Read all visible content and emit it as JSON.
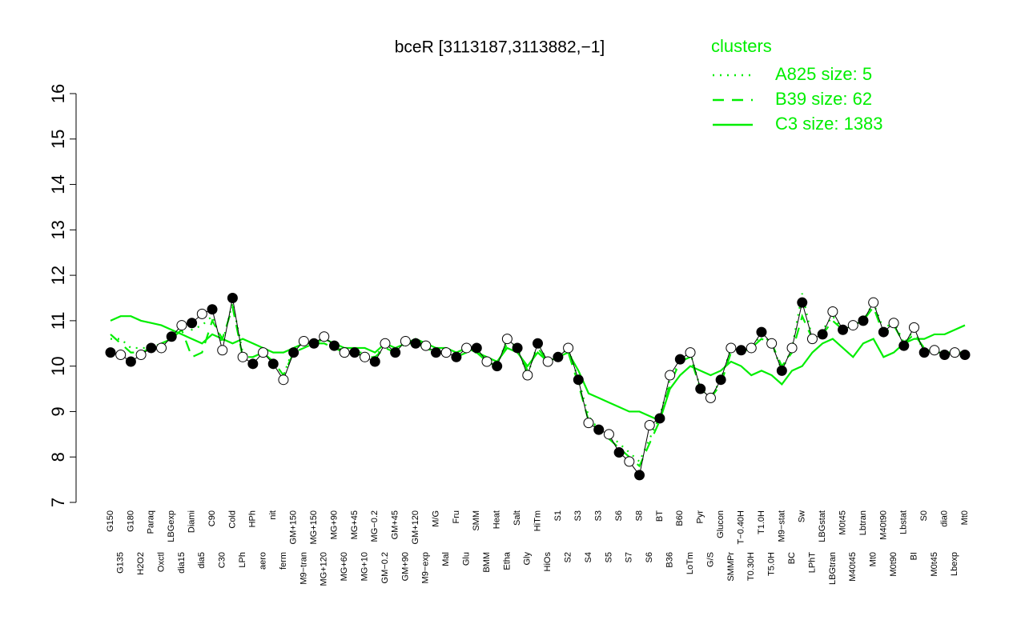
{
  "chart_data": {
    "type": "line",
    "title": "bceR [3113187,3113882,−1]",
    "legend_title": "clusters",
    "legend_position": "top-right",
    "grid": false,
    "ylim": [
      7,
      16
    ],
    "yticks": [
      7,
      8,
      9,
      10,
      11,
      12,
      13,
      14,
      15,
      16
    ],
    "categories": [
      "G150",
      "G135",
      "G180",
      "H2O2",
      "Paraq",
      "Oxctl",
      "LBGexp",
      "dia15",
      "Diami",
      "dia5",
      "C90",
      "C30",
      "Cold",
      "LPh",
      "HPh",
      "aero",
      "nit",
      "ferm",
      "GM+150",
      "M9−tran",
      "MG+150",
      "MG+120",
      "MG+90",
      "MG+60",
      "MG+45",
      "MG+10",
      "MG−0.2",
      "GM−0.2",
      "GM+45",
      "GM+90",
      "GM+120",
      "M9−exp",
      "M/G",
      "Mal",
      "Fru",
      "Glu",
      "SMM",
      "BMM",
      "Heat",
      "Etha",
      "Salt",
      "Gly",
      "HiTm",
      "HiOs",
      "S1",
      "S2",
      "S3",
      "S4",
      "S3",
      "S5",
      "S6",
      "S7",
      "S8",
      "S6",
      "BT",
      "B36",
      "B60",
      "LoTm",
      "Pyr",
      "G/S",
      "Glucon",
      "SMMPr",
      "T−0.40H",
      "T0.30H",
      "T1.0H",
      "T5.0H",
      "M9−stat",
      "BC",
      "Sw",
      "LPhT",
      "LBGstat",
      "LBGtran",
      "M0t45",
      "M40t45",
      "Lbtran",
      "Mt0",
      "M40t90",
      "M0t90",
      "Lbstat",
      "BI",
      "S0",
      "M0t45",
      "dia0",
      "Lbexp",
      "Mt0"
    ],
    "values": [
      10.3,
      10.25,
      10.1,
      10.25,
      10.4,
      10.4,
      10.65,
      10.9,
      10.95,
      11.15,
      11.25,
      10.35,
      11.5,
      10.2,
      10.05,
      10.3,
      10.05,
      9.7,
      10.3,
      10.55,
      10.5,
      10.65,
      10.45,
      10.3,
      10.3,
      10.2,
      10.1,
      10.5,
      10.3,
      10.55,
      10.5,
      10.45,
      10.3,
      10.3,
      10.2,
      10.4,
      10.4,
      10.1,
      10.0,
      10.6,
      10.4,
      9.8,
      10.5,
      10.1,
      10.2,
      10.4,
      9.7,
      8.75,
      8.6,
      8.5,
      8.1,
      7.9,
      7.6,
      8.7,
      8.85,
      9.8,
      10.15,
      10.3,
      9.5,
      9.3,
      9.7,
      10.4,
      10.35,
      10.4,
      10.75,
      10.5,
      9.9,
      10.4,
      11.4,
      10.6,
      10.7,
      11.2,
      10.8,
      10.9,
      11.0,
      11.4,
      10.75,
      10.95,
      10.45,
      10.85,
      10.3,
      10.35,
      10.25,
      10.3,
      10.25
    ],
    "series": [
      {
        "name": "A825 size: 5",
        "color": "#00ee00",
        "style": "dotted",
        "values": [
          10.6,
          10.6,
          10.4,
          10.4,
          10.4,
          10.5,
          10.6,
          10.9,
          10.8,
          10.9,
          11.1,
          10.5,
          11.4,
          10.3,
          10.2,
          10.3,
          10.1,
          9.8,
          10.4,
          10.5,
          10.5,
          10.6,
          10.5,
          10.3,
          10.3,
          10.3,
          10.2,
          10.5,
          10.3,
          10.6,
          10.5,
          10.5,
          10.3,
          10.3,
          10.2,
          10.4,
          10.4,
          10.1,
          10.0,
          10.6,
          10.4,
          9.8,
          10.5,
          10.1,
          10.2,
          10.4,
          9.7,
          8.9,
          8.6,
          8.5,
          8.3,
          8.1,
          7.9,
          8.4,
          8.9,
          9.7,
          10.1,
          10.3,
          9.5,
          9.3,
          9.7,
          10.4,
          10.4,
          10.4,
          10.7,
          10.5,
          9.9,
          10.4,
          11.6,
          10.6,
          10.8,
          11.1,
          10.8,
          10.9,
          11.0,
          11.4,
          10.8,
          11.0,
          10.5,
          10.8,
          10.3,
          10.4,
          10.3,
          10.3,
          10.3
        ]
      },
      {
        "name": "B39 size: 62",
        "color": "#00ee00",
        "style": "dashed",
        "values": [
          10.7,
          10.5,
          10.3,
          10.3,
          10.4,
          10.5,
          10.6,
          10.8,
          10.2,
          10.3,
          11.0,
          10.6,
          11.3,
          10.2,
          10.2,
          10.3,
          10.1,
          9.8,
          10.3,
          10.4,
          10.5,
          10.5,
          10.4,
          10.3,
          10.3,
          10.2,
          10.2,
          10.4,
          10.3,
          10.5,
          10.5,
          10.4,
          10.3,
          10.3,
          10.2,
          10.3,
          10.3,
          10.1,
          10.0,
          10.5,
          10.4,
          9.9,
          10.4,
          10.1,
          10.2,
          10.3,
          9.6,
          8.8,
          8.6,
          8.4,
          8.2,
          8.0,
          7.8,
          8.3,
          8.8,
          9.6,
          10.1,
          10.2,
          9.5,
          9.3,
          9.6,
          10.3,
          10.3,
          10.4,
          10.6,
          10.5,
          10.0,
          10.3,
          11.1,
          10.6,
          10.7,
          11.0,
          10.8,
          10.9,
          11.0,
          11.3,
          10.7,
          10.9,
          10.5,
          10.7,
          10.4,
          10.3,
          10.3,
          10.3,
          10.3
        ]
      },
      {
        "name": "C3 size: 1383",
        "color": "#00ee00",
        "style": "solid",
        "values": [
          11.0,
          11.1,
          11.1,
          11.0,
          10.95,
          10.9,
          10.8,
          10.7,
          10.6,
          10.5,
          10.7,
          10.6,
          10.5,
          10.6,
          10.5,
          10.4,
          10.3,
          10.3,
          10.4,
          10.5,
          10.5,
          10.6,
          10.5,
          10.4,
          10.4,
          10.4,
          10.3,
          10.5,
          10.4,
          10.5,
          10.6,
          10.5,
          10.4,
          10.4,
          10.3,
          10.4,
          10.3,
          10.2,
          10.1,
          10.4,
          10.3,
          10.0,
          10.3,
          10.1,
          10.2,
          10.3,
          9.9,
          9.4,
          9.3,
          9.2,
          9.1,
          9.0,
          9.0,
          8.9,
          8.8,
          9.5,
          9.8,
          10.0,
          9.9,
          9.8,
          9.9,
          10.1,
          10.0,
          9.8,
          9.9,
          9.8,
          9.6,
          9.9,
          10.0,
          10.3,
          10.5,
          10.6,
          10.4,
          10.2,
          10.5,
          10.6,
          10.2,
          10.3,
          10.5,
          10.6,
          10.6,
          10.7,
          10.7,
          10.8,
          10.9
        ]
      }
    ]
  }
}
